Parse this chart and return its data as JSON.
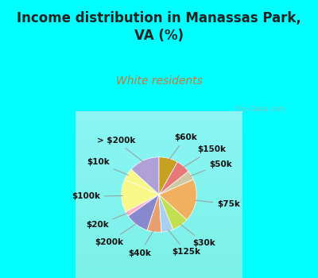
{
  "title": "Income distribution in Manassas Park,\nVA (%)",
  "subtitle": "White residents",
  "title_color": "#222222",
  "subtitle_color": "#c87832",
  "background_top": "#00ffff",
  "background_chart_top": "#e8f0ee",
  "background_chart_bottom": "#d0e8d8",
  "watermark": "  City-Data.com",
  "labels": [
    "> $200k",
    "$10k",
    "$100k",
    "$20k",
    "$200k",
    "$40k",
    "$125k",
    "$30k",
    "$75k",
    "$50k",
    "$150k",
    "$60k"
  ],
  "values": [
    13,
    5,
    14,
    2,
    10,
    6,
    5,
    7,
    18,
    4,
    6,
    8
  ],
  "colors": [
    "#b0a0d8",
    "#f8f888",
    "#f8f888",
    "#ffb0c8",
    "#8888cc",
    "#e8a070",
    "#aad0f0",
    "#c0e050",
    "#f0b060",
    "#d0c8a0",
    "#e87878",
    "#c8a020"
  ],
  "label_fontsize": 7.5,
  "title_fontsize": 12,
  "subtitle_fontsize": 10,
  "startangle": 90
}
